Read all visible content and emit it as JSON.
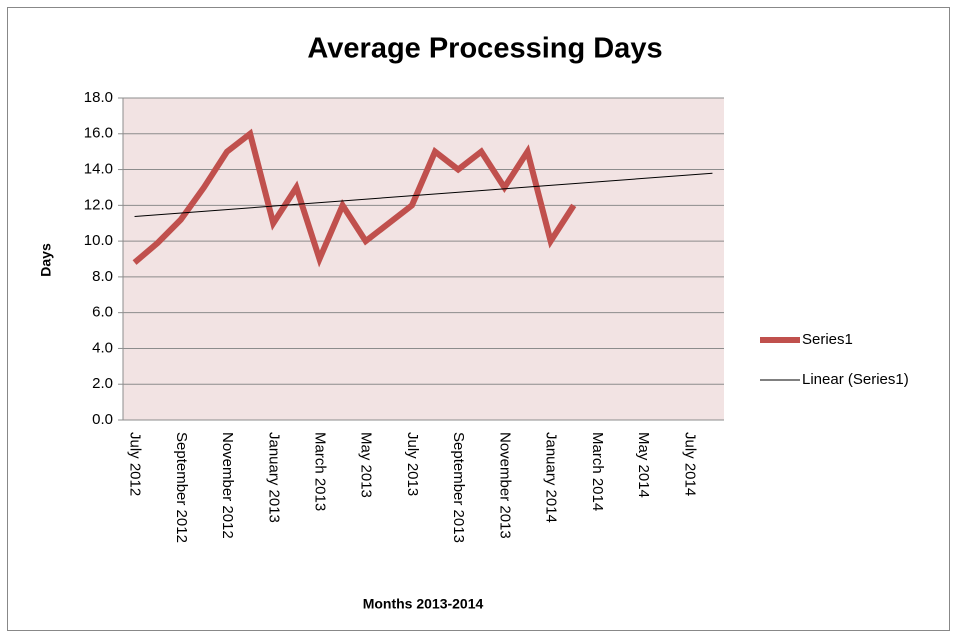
{
  "chart_data": {
    "type": "line",
    "title": "Average Processing Days",
    "x_label": "Months 2013-2014",
    "y_label": "Days",
    "categories": [
      "July 2012",
      null,
      "September 2012",
      null,
      "November 2012",
      null,
      "January 2013",
      null,
      "March 2013",
      null,
      "May 2013",
      null,
      "July 2013",
      null,
      "September 2013",
      null,
      "November 2013",
      null,
      "January 2014",
      null,
      "March 2014",
      null,
      "May 2014",
      null,
      "July 2014",
      null
    ],
    "series": [
      {
        "name": "Series1",
        "color": "#c0504d",
        "values": [
          8.8,
          9.9,
          11.2,
          13,
          15,
          16,
          11,
          13,
          9,
          12,
          10,
          11,
          12,
          15,
          14,
          15,
          13,
          15,
          10,
          12,
          null,
          null,
          null,
          null,
          null,
          null
        ]
      },
      {
        "name": "Linear (Series1)",
        "color": "#000000",
        "trendline": "linear",
        "of": 0
      }
    ],
    "ylim": [
      0,
      18
    ],
    "yticks": [
      {
        "value": 0,
        "label": "0.0"
      },
      {
        "value": 2,
        "label": "2.0"
      },
      {
        "value": 4,
        "label": "4.0"
      },
      {
        "value": 6,
        "label": "6.0"
      },
      {
        "value": 8,
        "label": "8.0"
      },
      {
        "value": 10,
        "label": "10.0"
      },
      {
        "value": 12,
        "label": "12.0"
      },
      {
        "value": 14,
        "label": "14.0"
      },
      {
        "value": 16,
        "label": "16.0"
      },
      {
        "value": 18,
        "label": "18.0"
      }
    ],
    "grid": true,
    "legend": "right",
    "plot_background": "#f2e3e3"
  }
}
